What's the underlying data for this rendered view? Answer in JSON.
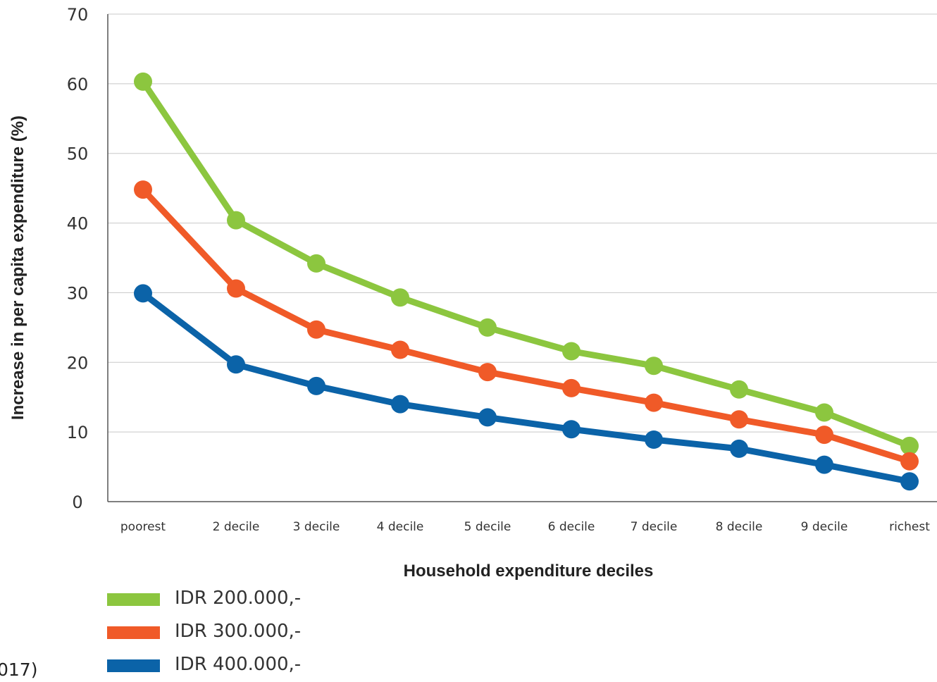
{
  "chart_data": {
    "type": "line",
    "xlabel": "Household expenditure deciles",
    "ylabel": "Increase in per capita expenditure (%)",
    "ylim": [
      0,
      70
    ],
    "yticks": [
      "0",
      "10",
      "20",
      "30",
      "40",
      "50",
      "60",
      "70"
    ],
    "categories": [
      "poorest",
      "2 decile",
      "3 decile",
      "4 decile",
      "5 decile",
      "6 decile",
      "7 decile",
      "8 decile",
      "9 decile",
      "richest"
    ],
    "grid": true,
    "legend_position": "bottom-left",
    "series": [
      {
        "name": "IDR 200.000,-",
        "color": "#8cc63f",
        "values": [
          60.3,
          40.4,
          34.2,
          29.3,
          25.0,
          21.6,
          19.5,
          16.1,
          12.8,
          8.0
        ]
      },
      {
        "name": "IDR 300.000,-",
        "color": "#f05a28",
        "values": [
          44.8,
          30.6,
          24.7,
          21.8,
          18.6,
          16.3,
          14.2,
          11.8,
          9.6,
          5.8
        ]
      },
      {
        "name": "IDR 400.000,-",
        "color": "#0b63a8",
        "values": [
          29.9,
          19.7,
          16.6,
          14.0,
          12.1,
          10.4,
          8.9,
          7.6,
          5.3,
          2.9
        ]
      }
    ]
  },
  "cut_off_text": "017)"
}
